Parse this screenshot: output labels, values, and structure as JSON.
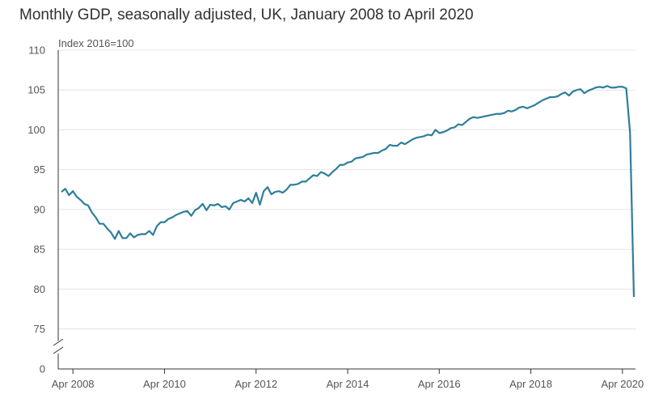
{
  "title": "Monthly GDP, seasonally adjusted, UK, January 2008 to April 2020",
  "chart_data": {
    "type": "line",
    "title": "Monthly GDP, seasonally adjusted, UK, January 2008 to April 2020",
    "unit_label": "Index 2016=100",
    "xlabel": "",
    "ylabel": "",
    "ylim": [
      75,
      110
    ],
    "y_axis_break": true,
    "y_ticks": [
      "110",
      "105",
      "100",
      "95",
      "90",
      "85",
      "80",
      "75",
      "0"
    ],
    "x_tick_labels": [
      "Apr 2008",
      "Apr 2010",
      "Apr 2012",
      "Apr 2014",
      "Apr 2016",
      "Apr 2018",
      "Apr 2020"
    ],
    "grid": "horizontal",
    "line_color": "#2e7e9a",
    "series": [
      {
        "name": "",
        "start": "Jan 2008",
        "frequency": "monthly",
        "values": [
          92.2,
          92.6,
          91.8,
          92.3,
          91.6,
          91.2,
          90.7,
          90.5,
          89.6,
          89.0,
          88.2,
          88.2,
          87.6,
          87.1,
          86.3,
          87.3,
          86.4,
          86.4,
          87.0,
          86.5,
          86.8,
          86.9,
          86.9,
          87.3,
          86.8,
          87.9,
          88.4,
          88.4,
          88.8,
          89.0,
          89.3,
          89.5,
          89.7,
          89.8,
          89.2,
          89.9,
          90.2,
          90.7,
          89.9,
          90.6,
          90.5,
          90.7,
          90.3,
          90.4,
          90.0,
          90.8,
          91.0,
          91.2,
          91.0,
          91.4,
          90.8,
          92.1,
          90.6,
          92.3,
          92.8,
          91.9,
          92.2,
          92.3,
          92.1,
          92.5,
          93.1,
          93.1,
          93.2,
          93.5,
          93.5,
          93.9,
          94.3,
          94.2,
          94.7,
          94.5,
          94.2,
          94.7,
          95.1,
          95.6,
          95.6,
          95.9,
          96.0,
          96.4,
          96.5,
          96.6,
          96.9,
          97.0,
          97.1,
          97.1,
          97.4,
          97.6,
          98.1,
          98.0,
          98.0,
          98.4,
          98.2,
          98.5,
          98.8,
          99.0,
          99.1,
          99.2,
          99.4,
          99.3,
          100.0,
          99.6,
          99.7,
          99.9,
          100.2,
          100.3,
          100.7,
          100.6,
          101.0,
          101.4,
          101.6,
          101.5,
          101.6,
          101.7,
          101.8,
          101.9,
          102.0,
          102.0,
          102.1,
          102.4,
          102.3,
          102.5,
          102.8,
          102.9,
          102.7,
          102.9,
          103.1,
          103.4,
          103.7,
          103.9,
          104.1,
          104.1,
          104.2,
          104.5,
          104.7,
          104.3,
          104.8,
          105.0,
          105.1,
          104.6,
          104.9,
          105.1,
          105.3,
          105.4,
          105.3,
          105.5,
          105.3,
          105.3,
          105.4,
          105.4,
          105.2,
          99.6,
          79.0
        ]
      }
    ]
  }
}
